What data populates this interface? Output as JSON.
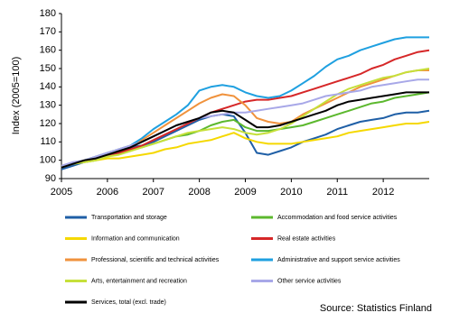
{
  "chart_data": {
    "type": "line",
    "y_label": "Index (2005=100)",
    "source": "Source: Statistics Finland",
    "x": [
      2005,
      2005.25,
      2005.5,
      2005.75,
      2006,
      2006.25,
      2006.5,
      2006.75,
      2007,
      2007.25,
      2007.5,
      2007.75,
      2008,
      2008.25,
      2008.5,
      2008.75,
      2009,
      2009.25,
      2009.5,
      2009.75,
      2010,
      2010.25,
      2010.5,
      2010.75,
      2011,
      2011.25,
      2011.5,
      2011.75,
      2012,
      2012.25,
      2012.5,
      2012.75,
      2013
    ],
    "xlim": [
      2005,
      2013
    ],
    "xticks": [
      2005,
      2006,
      2007,
      2008,
      2009,
      2010,
      2011,
      2012
    ],
    "ylim": [
      90,
      180
    ],
    "yticks": [
      90,
      100,
      110,
      120,
      130,
      140,
      150,
      160,
      170,
      180
    ],
    "grid": false,
    "series": [
      {
        "name": "Transportation and storage",
        "color": "#1f5fa6",
        "values": [
          95,
          97,
          99,
          101,
          104,
          105,
          107,
          108,
          110,
          113,
          116,
          119,
          122,
          124,
          125,
          124,
          115,
          104,
          103,
          105,
          107,
          110,
          112,
          114,
          117,
          119,
          121,
          122,
          123,
          125,
          126,
          126,
          127
        ]
      },
      {
        "name": "Accommodation and food service activities",
        "color": "#5cb82e",
        "values": [
          96,
          98,
          99,
          100,
          102,
          104,
          106,
          107,
          109,
          111,
          113,
          114,
          116,
          119,
          121,
          122,
          118,
          116,
          116,
          117,
          118,
          119,
          121,
          123,
          125,
          127,
          129,
          131,
          132,
          134,
          135,
          136,
          137
        ]
      },
      {
        "name": "Information and communication",
        "color": "#f5d800",
        "values": [
          97,
          98,
          99,
          100,
          101,
          101,
          102,
          103,
          104,
          106,
          107,
          109,
          110,
          111,
          113,
          115,
          112,
          110,
          109,
          109,
          109,
          110,
          111,
          112,
          113,
          115,
          116,
          117,
          118,
          119,
          120,
          120,
          121
        ]
      },
      {
        "name": "Real estate activities",
        "color": "#d62728",
        "values": [
          96,
          98,
          100,
          101,
          103,
          104,
          106,
          108,
          111,
          114,
          117,
          120,
          123,
          126,
          128,
          130,
          132,
          133,
          133,
          134,
          135,
          137,
          139,
          141,
          143,
          145,
          147,
          150,
          152,
          155,
          157,
          159,
          160
        ]
      },
      {
        "name": "Professional, scientific and technical activities",
        "color": "#f0923c",
        "values": [
          96,
          98,
          100,
          102,
          104,
          106,
          108,
          111,
          115,
          119,
          123,
          127,
          131,
          134,
          136,
          135,
          130,
          123,
          121,
          120,
          121,
          125,
          128,
          131,
          134,
          137,
          140,
          142,
          144,
          146,
          148,
          149,
          149
        ]
      },
      {
        "name": "Administrative and support service activities",
        "color": "#1fa0e0",
        "values": [
          96,
          98,
          100,
          102,
          104,
          106,
          108,
          112,
          117,
          121,
          125,
          130,
          138,
          140,
          141,
          140,
          137,
          135,
          134,
          135,
          138,
          142,
          146,
          151,
          155,
          157,
          160,
          162,
          164,
          166,
          167,
          167,
          167
        ]
      },
      {
        "name": "Arts, entertainment and recreation",
        "color": "#c6e03a",
        "values": [
          97,
          98,
          99,
          100,
          102,
          103,
          105,
          107,
          109,
          111,
          113,
          115,
          116,
          117,
          118,
          117,
          115,
          114,
          115,
          117,
          120,
          124,
          128,
          132,
          136,
          139,
          141,
          143,
          145,
          146,
          148,
          149,
          150
        ]
      },
      {
        "name": "Other service activities",
        "color": "#a8a8e8",
        "values": [
          97,
          99,
          100,
          102,
          104,
          106,
          108,
          110,
          113,
          116,
          119,
          121,
          123,
          124,
          125,
          126,
          126,
          127,
          128,
          129,
          130,
          131,
          133,
          135,
          136,
          137,
          138,
          140,
          141,
          142,
          143,
          144,
          144
        ]
      },
      {
        "name": "Services, total (excl. trade)",
        "color": "#000000",
        "values": [
          96,
          98,
          100,
          101,
          103,
          105,
          107,
          110,
          113,
          116,
          119,
          121,
          123,
          126,
          127,
          126,
          122,
          118,
          118,
          119,
          121,
          123,
          125,
          127,
          130,
          132,
          133,
          134,
          135,
          136,
          137,
          137,
          137
        ]
      }
    ]
  }
}
